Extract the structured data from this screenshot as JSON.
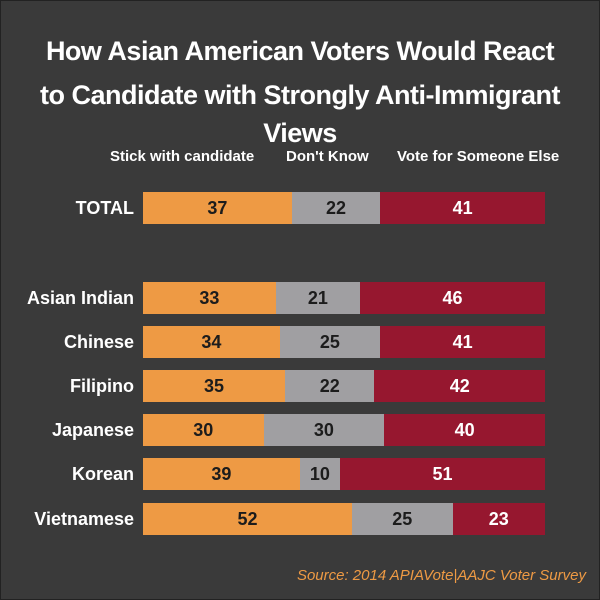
{
  "title_line1": "How Asian American Voters Would React",
  "title_line2": "to Candidate with Strongly Anti-Immigrant Views",
  "legend": {
    "stick": "Stick with candidate",
    "dont_know": "Don't Know",
    "else": "Vote for Someone Else"
  },
  "source": "Source: 2014 APIAVote|AAJC Voter Survey",
  "colors": {
    "stick": "#ee9a44",
    "dont_know": "#a09fa2",
    "else": "#96172f",
    "background": "#3a3a3a"
  },
  "chart_data": {
    "type": "bar",
    "orientation": "horizontal",
    "stacked": true,
    "title": "How Asian American Voters Would React to Candidate with Strongly Anti-Immigrant Views",
    "categories": [
      "TOTAL",
      "Asian Indian",
      "Chinese",
      "Filipino",
      "Japanese",
      "Korean",
      "Vietnamese"
    ],
    "series": [
      {
        "name": "Stick with candidate",
        "values": [
          37,
          33,
          34,
          35,
          30,
          39,
          52
        ]
      },
      {
        "name": "Don't Know",
        "values": [
          22,
          21,
          25,
          22,
          30,
          10,
          25
        ]
      },
      {
        "name": "Vote for Someone Else",
        "values": [
          41,
          46,
          41,
          42,
          40,
          51,
          23
        ]
      }
    ],
    "xlim": [
      0,
      100
    ],
    "grid": false,
    "legend_position": "top"
  }
}
